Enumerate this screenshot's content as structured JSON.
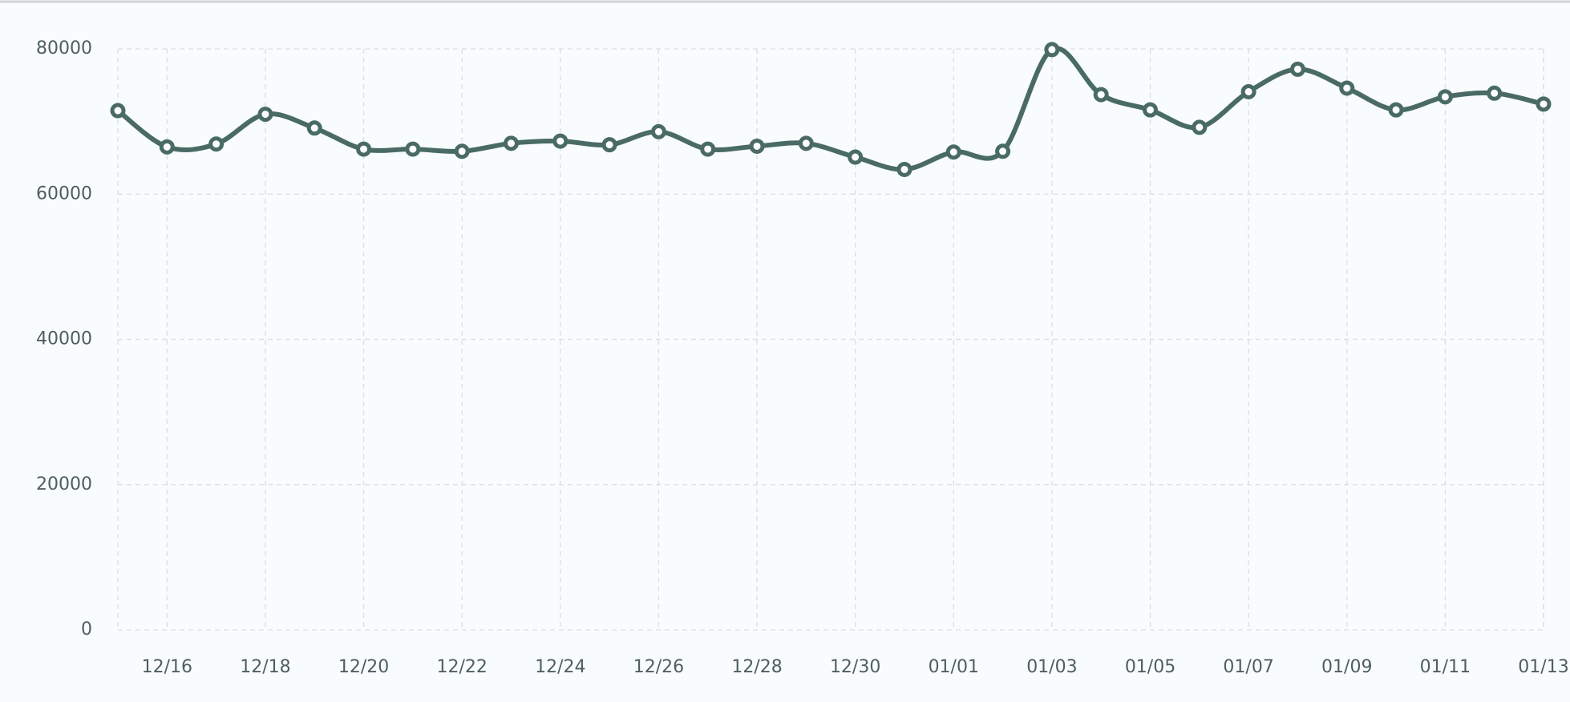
{
  "chart_data": {
    "type": "line",
    "categories": [
      null,
      "12/16",
      null,
      "12/18",
      null,
      "12/20",
      null,
      "12/22",
      null,
      "12/24",
      null,
      "12/26",
      null,
      "12/28",
      null,
      "12/30",
      null,
      "01/01",
      null,
      "01/03",
      null,
      "01/05",
      null,
      "01/07",
      null,
      "01/09",
      null,
      "01/11",
      null,
      "01/13"
    ],
    "series": [
      {
        "color": "#4a6b65",
        "values": [
          71500,
          66500,
          66900,
          71000,
          69100,
          66200,
          66200,
          65900,
          67000,
          67300,
          66800,
          68600,
          66200,
          66600,
          67000,
          65100,
          63400,
          65800,
          65900,
          79900,
          73700,
          71600,
          69200,
          74100,
          77200,
          74600,
          71600,
          73400,
          73900,
          72400
        ]
      }
    ],
    "ylim": [
      0,
      80000
    ],
    "yticks": [
      0,
      20000,
      40000,
      60000,
      80000
    ],
    "grid": true
  }
}
